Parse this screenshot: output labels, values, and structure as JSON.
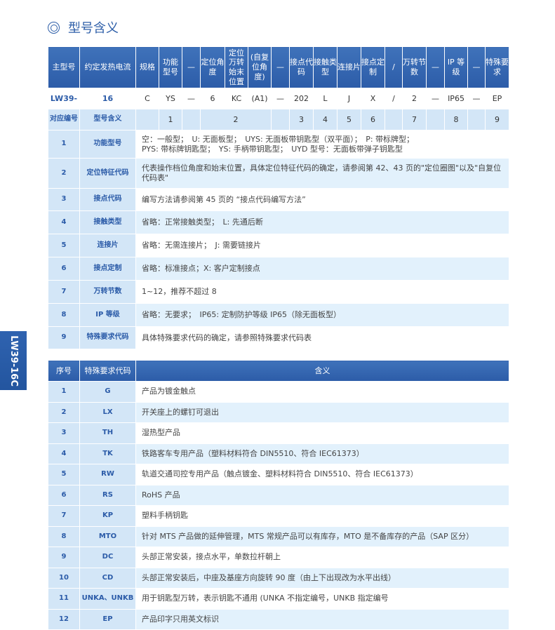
{
  "title": "型号含义",
  "side_tab": "LW39-16C",
  "model_table": {
    "headers": [
      "主型号",
      "约定发热电流",
      "规格",
      "功能型号",
      "—",
      "定位角度",
      "定位万转始末位置",
      "(自复位角度)",
      "—",
      "接点代码",
      "接触类型",
      "连接片",
      "接点定制",
      "/",
      "万转节数",
      "—",
      "IP 等级",
      "—",
      "特殊要求"
    ],
    "example": [
      "LW39-",
      "16",
      "C",
      "YS",
      "—",
      "6",
      "KC",
      "(A1)",
      "—",
      "202",
      "L",
      "J",
      "X",
      "/",
      "2",
      "—",
      "IP65",
      "—",
      "EP"
    ],
    "correspondence": {
      "label": "对应编号",
      "meaning": "型号含义",
      "numbers": [
        "1",
        "2",
        "3",
        "4",
        "5",
        "6",
        "7",
        "8",
        "9"
      ]
    }
  },
  "detail_rows": [
    {
      "no": "1",
      "name": "功能型号",
      "text": "空：一般型；　U: 无面板型；　UYS: 无面板带钥匙型（双平面）；　P: 带标牌型；\nPYS: 带标牌钥匙型；　YS: 手柄带钥匙型；　UYD 型号：无面板带弹子钥匙型"
    },
    {
      "no": "2",
      "name": "定位特征代码",
      "text": "代表操作档位角度和始末位置，具体定位特征代码的确定，请参阅第 42、43 页的\"定位圈图\"以及\"自复位代码表\""
    },
    {
      "no": "3",
      "name": "接点代码",
      "text": "编写方法请参阅第 45 页的 “接点代码编写方法”"
    },
    {
      "no": "4",
      "name": "接触类型",
      "text": "省略：正常接触类型；　L: 先通后断"
    },
    {
      "no": "5",
      "name": "连接片",
      "text": "省略：无需连接片；　J: 需要链接片"
    },
    {
      "no": "6",
      "name": "接点定制",
      "text": "省略：标准接点；X: 客户定制接点"
    },
    {
      "no": "7",
      "name": "万转节数",
      "text": "1~12，推荐不超过 8"
    },
    {
      "no": "8",
      "name": "IP 等级",
      "text": "省略：无要求；　IP65: 定制防护等级 IP65（除无面板型）"
    },
    {
      "no": "9",
      "name": "特殊要求代码",
      "text": "具体特殊要求代码的确定，请参照特殊要求代码表"
    }
  ],
  "special_table": {
    "headers": [
      "序号",
      "特殊要求代码",
      "含义"
    ],
    "rows": [
      {
        "no": "1",
        "code": "G",
        "text": "产品为镀金触点"
      },
      {
        "no": "2",
        "code": "LX",
        "text": "开关座上的螺钉可退出"
      },
      {
        "no": "3",
        "code": "TH",
        "text": "湿热型产品"
      },
      {
        "no": "4",
        "code": "TK",
        "text": "铁路客车专用产品（塑料材料符合 DIN5510、符合 IEC61373）"
      },
      {
        "no": "5",
        "code": "RW",
        "text": "轨道交通司控专用产品（触点镀金、塑料材料符合 DIN5510、符合 IEC61373）"
      },
      {
        "no": "6",
        "code": "RS",
        "text": "RoHS 产品"
      },
      {
        "no": "7",
        "code": "KP",
        "text": "塑料手柄钥匙"
      },
      {
        "no": "8",
        "code": "MTO",
        "text": "针对 MTS 产品做的延伸管理，MTS 常规产品可以有库存，MTO 是不备库存的产品（SAP 区分）"
      },
      {
        "no": "9",
        "code": "DC",
        "text": "头部正常安装，接点水平，单数拉杆朝上"
      },
      {
        "no": "10",
        "code": "CD",
        "text": "头部正常安装后，中座及基座方向旋转 90 度（由上下出现改为水平出线）"
      },
      {
        "no": "11",
        "code": "UNKA、UNKB",
        "text": "用于钥匙型万转，表示钥匙不通用 (UNKA 不指定编号，UNKB 指定编号"
      },
      {
        "no": "12",
        "code": "EP",
        "text": "产品印字只用英文标识"
      }
    ]
  },
  "colors": {
    "header": "#2c5ca8",
    "light": "#d3e6f7",
    "alt_row": "#e2f1fc",
    "text_blue": "#2b5ba8"
  }
}
